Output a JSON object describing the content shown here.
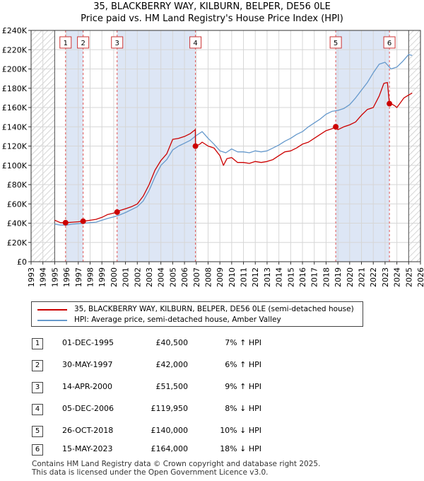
{
  "title_line1": "35, BLACKBERRY WAY, KILBURN, BELPER, DE56 0LE",
  "title_line2": "Price paid vs. HM Land Registry's House Price Index (HPI)",
  "chart_data": {
    "type": "line",
    "xlim": [
      1993,
      2026
    ],
    "ylim": [
      0,
      240000
    ],
    "x_ticks": [
      "1993",
      "1994",
      "1995",
      "1996",
      "1997",
      "1998",
      "1999",
      "2000",
      "2001",
      "2002",
      "2003",
      "2004",
      "2005",
      "2006",
      "2007",
      "2008",
      "2009",
      "2010",
      "2011",
      "2012",
      "2013",
      "2014",
      "2015",
      "2016",
      "2017",
      "2018",
      "2019",
      "2020",
      "2021",
      "2022",
      "2023",
      "2024",
      "2025",
      "2026"
    ],
    "y_ticks": [
      {
        "label": "£0",
        "value": 0
      },
      {
        "label": "£20K",
        "value": 20000
      },
      {
        "label": "£40K",
        "value": 40000
      },
      {
        "label": "£60K",
        "value": 60000
      },
      {
        "label": "£80K",
        "value": 80000
      },
      {
        "label": "£100K",
        "value": 100000
      },
      {
        "label": "£120K",
        "value": 120000
      },
      {
        "label": "£140K",
        "value": 140000
      },
      {
        "label": "£160K",
        "value": 160000
      },
      {
        "label": "£180K",
        "value": 180000
      },
      {
        "label": "£200K",
        "value": 200000
      },
      {
        "label": "£220K",
        "value": 220000
      },
      {
        "label": "£240K",
        "value": 240000
      }
    ],
    "hatched_before": 1995.0,
    "hatched_after": 2025.0,
    "series": [
      {
        "name": "35, BLACKBERRY WAY, KILBURN, BELPER, DE56 0LE (semi-detached house)",
        "color": "#cc0000",
        "x": [
          1995.0,
          1995.5,
          1995.92,
          1996.5,
          1997.0,
          1997.41,
          1998.0,
          1998.5,
          1999.0,
          1999.5,
          2000.0,
          2000.29,
          2000.5,
          2001.0,
          2001.5,
          2002.0,
          2002.5,
          2003.0,
          2003.5,
          2004.0,
          2004.5,
          2005.0,
          2005.5,
          2006.0,
          2006.5,
          2006.92,
          2006.93,
          2007.3,
          2007.5,
          2008.0,
          2008.5,
          2009.0,
          2009.3,
          2009.6,
          2010.0,
          2010.5,
          2011.0,
          2011.5,
          2012.0,
          2012.5,
          2013.0,
          2013.5,
          2014.0,
          2014.5,
          2015.0,
          2015.5,
          2016.0,
          2016.5,
          2017.0,
          2017.5,
          2018.0,
          2018.5,
          2018.82,
          2019.0,
          2019.5,
          2020.0,
          2020.5,
          2021.0,
          2021.5,
          2022.0,
          2022.5,
          2022.9,
          2023.2,
          2023.37,
          2023.5,
          2023.8,
          2024.0,
          2024.3,
          2024.6,
          2025.0,
          2025.3
        ],
        "values": [
          43000,
          40500,
          40500,
          41000,
          41500,
          42000,
          43000,
          44000,
          46000,
          49000,
          50500,
          51500,
          53000,
          55000,
          57000,
          60000,
          68000,
          80000,
          95000,
          105000,
          112000,
          127000,
          128000,
          130000,
          133000,
          137000,
          119950,
          122000,
          124000,
          120000,
          118000,
          110000,
          100000,
          107000,
          108000,
          103000,
          103000,
          102000,
          104000,
          103000,
          104000,
          106000,
          110000,
          114000,
          115000,
          118000,
          122000,
          124000,
          128000,
          132000,
          136000,
          138000,
          140000,
          137000,
          140000,
          142000,
          145000,
          152000,
          158000,
          160000,
          172000,
          185000,
          186000,
          164000,
          164000,
          162000,
          160000,
          165000,
          170000,
          173000,
          175000
        ]
      },
      {
        "name": "HPI: Average price, semi-detached house, Amber Valley",
        "color": "#6699cc",
        "x": [
          1995.0,
          1995.5,
          1996.0,
          1996.5,
          1997.0,
          1997.5,
          1998.0,
          1998.5,
          1999.0,
          1999.5,
          2000.0,
          2000.5,
          2001.0,
          2001.5,
          2002.0,
          2002.5,
          2003.0,
          2003.5,
          2004.0,
          2004.5,
          2005.0,
          2005.5,
          2006.0,
          2006.5,
          2007.0,
          2007.5,
          2008.0,
          2008.5,
          2009.0,
          2009.5,
          2010.0,
          2010.5,
          2011.0,
          2011.5,
          2012.0,
          2012.5,
          2013.0,
          2013.5,
          2014.0,
          2014.5,
          2015.0,
          2015.5,
          2016.0,
          2016.5,
          2017.0,
          2017.5,
          2018.0,
          2018.5,
          2019.0,
          2019.5,
          2020.0,
          2020.5,
          2021.0,
          2021.5,
          2022.0,
          2022.5,
          2023.0,
          2023.5,
          2024.0,
          2024.5,
          2025.0,
          2025.3
        ],
        "values": [
          39000,
          38000,
          38000,
          39000,
          39500,
          40000,
          40500,
          41000,
          43000,
          45000,
          46500,
          48500,
          51000,
          54000,
          57000,
          63000,
          74000,
          88000,
          100000,
          106000,
          116000,
          120000,
          123000,
          126000,
          131000,
          135000,
          128000,
          122000,
          115000,
          113000,
          117000,
          114000,
          114000,
          113000,
          115000,
          114000,
          115000,
          118000,
          121000,
          125000,
          128000,
          132000,
          135000,
          140000,
          144000,
          148000,
          153000,
          156000,
          157000,
          159000,
          163000,
          170000,
          178000,
          186000,
          196000,
          205000,
          207000,
          200000,
          202000,
          208000,
          215000,
          214000
        ]
      }
    ],
    "sale_markers": [
      {
        "label": "1",
        "x": 1995.92,
        "value": 40500
      },
      {
        "label": "2",
        "x": 1997.41,
        "value": 42000
      },
      {
        "label": "3",
        "x": 2000.29,
        "value": 51500
      },
      {
        "label": "4",
        "x": 2006.93,
        "value": 119950
      },
      {
        "label": "5",
        "x": 2018.82,
        "value": 140000
      },
      {
        "label": "6",
        "x": 2023.37,
        "value": 164000
      }
    ],
    "sale_bands": [
      [
        1995.92,
        1997.41
      ],
      [
        2000.29,
        2006.93
      ],
      [
        2018.82,
        2023.37
      ]
    ]
  },
  "colors": {
    "property_line": "#cc0000",
    "hpi_line": "#6699cc",
    "band_fill": "#dde6f5",
    "grid": "#d6d6d6",
    "sale_vline": "#e05555"
  },
  "legend": {
    "property_label": "35, BLACKBERRY WAY, KILBURN, BELPER, DE56 0LE (semi-detached house)",
    "hpi_label": "HPI: Average price, semi-detached house, Amber Valley"
  },
  "sales": [
    {
      "num": "1",
      "date": "01-DEC-1995",
      "price": "£40,500",
      "hpi": "7% ↑ HPI"
    },
    {
      "num": "2",
      "date": "30-MAY-1997",
      "price": "£42,000",
      "hpi": "6% ↑ HPI"
    },
    {
      "num": "3",
      "date": "14-APR-2000",
      "price": "£51,500",
      "hpi": "9% ↑ HPI"
    },
    {
      "num": "4",
      "date": "05-DEC-2006",
      "price": "£119,950",
      "hpi": "8% ↓ HPI"
    },
    {
      "num": "5",
      "date": "26-OCT-2018",
      "price": "£140,000",
      "hpi": "10% ↓ HPI"
    },
    {
      "num": "6",
      "date": "15-MAY-2023",
      "price": "£164,000",
      "hpi": "18% ↓ HPI"
    }
  ],
  "footer_line1": "Contains HM Land Registry data © Crown copyright and database right 2025.",
  "footer_line2": "This data is licensed under the Open Government Licence v3.0."
}
